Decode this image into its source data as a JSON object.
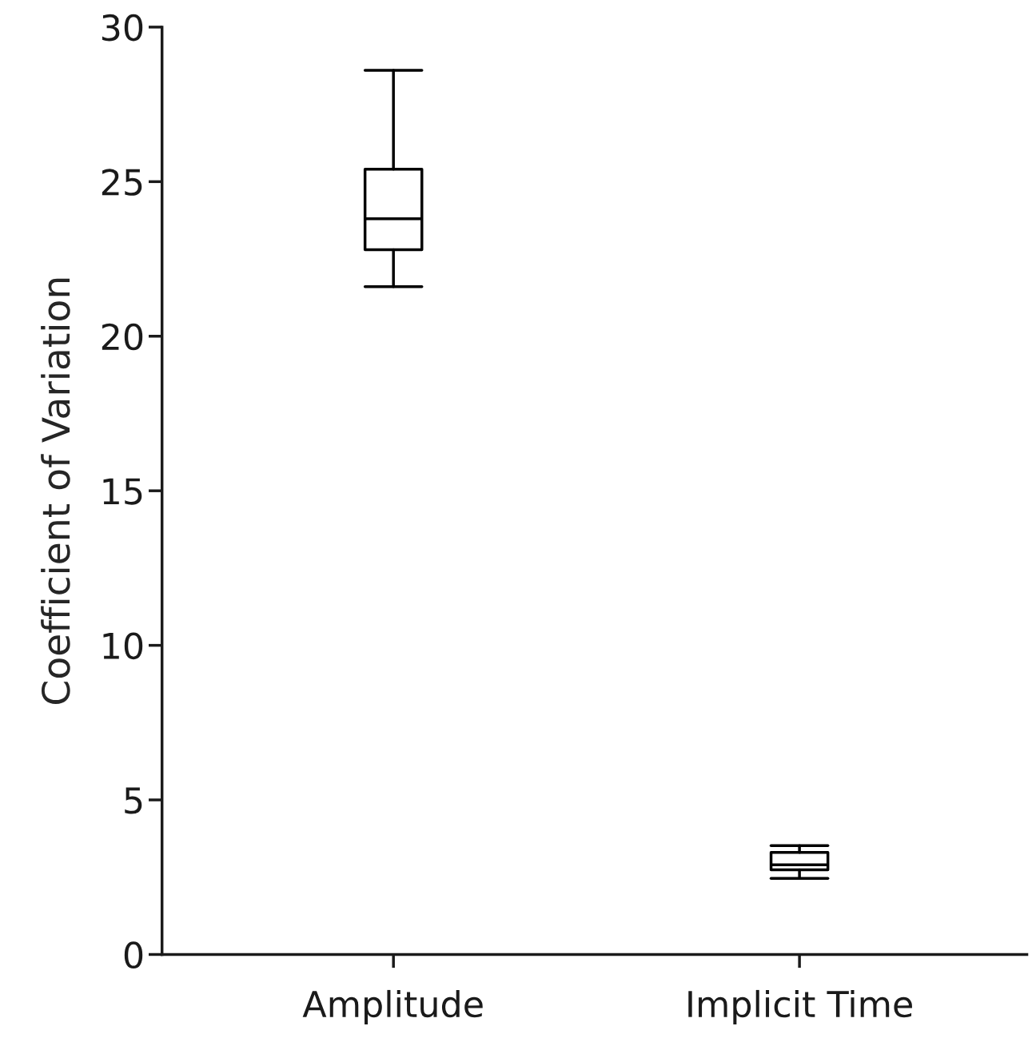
{
  "chart_data": {
    "type": "box",
    "ylabel": "Coefficient of Variation",
    "categories": [
      "Amplitude",
      "Implicit Time"
    ],
    "boxes": [
      {
        "low": 21.6,
        "q1": 22.8,
        "median": 23.8,
        "q3": 25.4,
        "high": 28.6
      },
      {
        "low": 2.46,
        "q1": 2.74,
        "median": 2.9,
        "q3": 3.3,
        "high": 3.52
      }
    ],
    "ylim": [
      0,
      30
    ],
    "yticks": [
      0,
      5,
      10,
      15,
      20,
      25,
      30
    ],
    "grid": false,
    "color": "#000000"
  }
}
